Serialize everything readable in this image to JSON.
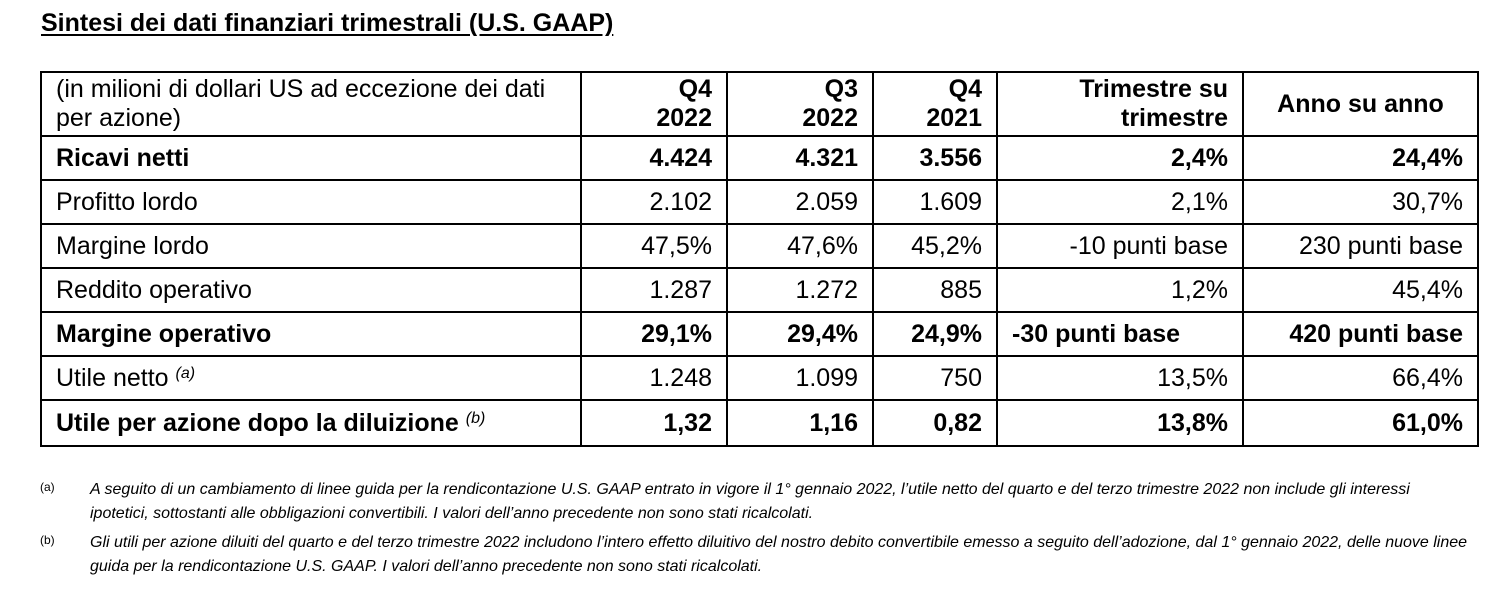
{
  "document": {
    "title": "Sintesi dei dati finanziari trimestrali (U.S. GAAP)"
  },
  "table": {
    "header": {
      "description": "(in milioni di dollari US ad eccezione dei dati per azione)",
      "q4_2022": [
        "Q4",
        "2022"
      ],
      "q3_2022": [
        "Q3",
        "2022"
      ],
      "q4_2021": [
        "Q4",
        "2021"
      ],
      "qoq": [
        "Trimestre su",
        "trimestre"
      ],
      "yoy": "Anno su anno"
    },
    "rows": [
      {
        "label": "Ricavi netti",
        "note": "",
        "bold": true,
        "values": [
          "4.424",
          "4.321",
          "3.556",
          "2,4%",
          "24,4%"
        ]
      },
      {
        "label": "Profitto lordo",
        "note": "",
        "bold": false,
        "values": [
          "2.102",
          "2.059",
          "1.609",
          "2,1%",
          "30,7%"
        ]
      },
      {
        "label": "Margine lordo",
        "note": "",
        "bold": false,
        "values": [
          "47,5%",
          "47,6%",
          "45,2%",
          "-10 punti base",
          "230 punti base"
        ]
      },
      {
        "label": "Reddito operativo",
        "note": "",
        "bold": false,
        "values": [
          "1.287",
          "1.272",
          "885",
          "1,2%",
          "45,4%"
        ]
      },
      {
        "label": "Margine operativo",
        "note": "",
        "bold": true,
        "values": [
          "29,1%",
          "29,4%",
          "24,9%",
          "-30 punti base",
          "420 punti base"
        ]
      },
      {
        "label": "Utile netto",
        "note": "(a)",
        "bold": false,
        "values": [
          "1.248",
          "1.099",
          "750",
          "13,5%",
          "66,4%"
        ]
      },
      {
        "label": "Utile per azione dopo la diluizione",
        "note": "(b)",
        "bold": true,
        "values": [
          "1,32",
          "1,16",
          "0,82",
          "13,8%",
          "61,0%"
        ]
      }
    ]
  },
  "footnotes": [
    {
      "mark": "(a)",
      "text": "A seguito di un cambiamento di linee guida per la rendicontazione U.S. GAAP entrato in vigore il 1° gennaio 2022, l’utile netto del quarto e del terzo trimestre 2022 non include gli interessi ipotetici, sottostanti alle obbligazioni convertibili. I valori dell’anno precedente non sono stati ricalcolati."
    },
    {
      "mark": "(b)",
      "text": "Gli utili per azione diluiti del quarto e del terzo trimestre 2022 includono l’intero effetto diluitivo del nostro debito convertibile emesso a seguito dell’adozione, dal 1° gennaio 2022, delle nuove linee guida per la rendicontazione U.S. GAAP. I valori dell’anno precedente non sono stati ricalcolati."
    }
  ]
}
